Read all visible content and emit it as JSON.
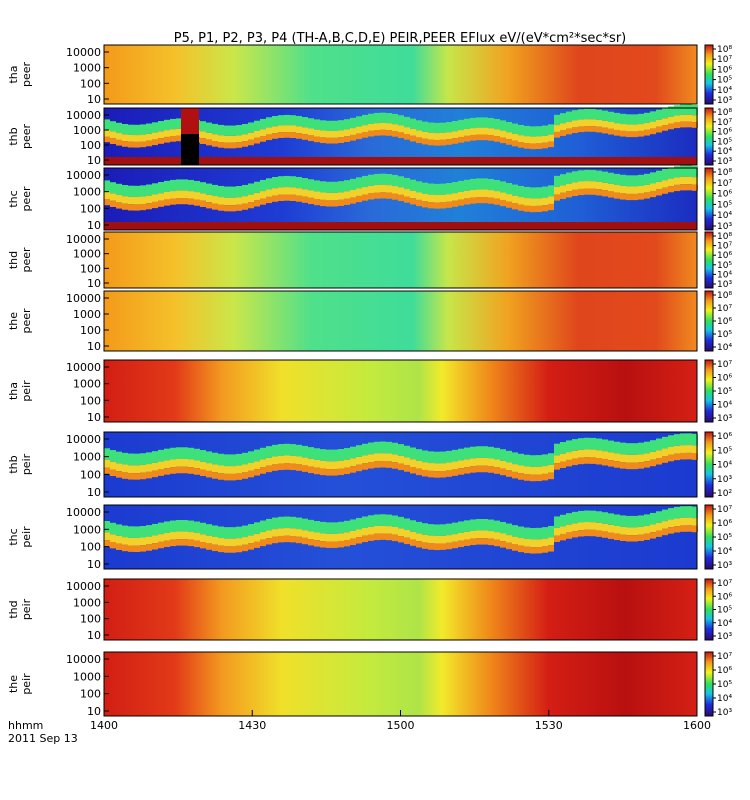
{
  "chart_data": {
    "type": "heatmap",
    "title": "P5, P1, P2, P3, P4 (TH-A,B,C,D,E) PEIR,PEER EFlux eV/(eV*cm²*sec*sr)",
    "time_axis": {
      "label_line1": "hhmm",
      "label_line2": "2011 Sep 13",
      "ticks": [
        "1400",
        "1430",
        "1500",
        "1530",
        "1600"
      ],
      "range_min": [
        0,
        120
      ]
    },
    "panels": [
      {
        "ylabel": [
          "tha",
          "peer"
        ],
        "yticks": [
          "10000",
          "1000",
          "100",
          "10"
        ],
        "colorbar_ticks": [
          "10⁸",
          "10⁷",
          "10⁶",
          "10⁵",
          "10⁴",
          "10³"
        ],
        "pattern": "smooth"
      },
      {
        "ylabel": [
          "thb",
          "peer"
        ],
        "yticks": [
          "10000",
          "1000",
          "100",
          "10"
        ],
        "colorbar_ticks": [
          "10⁸",
          "10⁷",
          "10⁶",
          "10⁵",
          "10⁴",
          "10³"
        ],
        "pattern": "noisy"
      },
      {
        "ylabel": [
          "thc",
          "peer"
        ],
        "yticks": [
          "10000",
          "1000",
          "100",
          "10"
        ],
        "colorbar_ticks": [
          "10⁸",
          "10⁷",
          "10⁶",
          "10⁵",
          "10⁴",
          "10³"
        ],
        "pattern": "noisy"
      },
      {
        "ylabel": [
          "thd",
          "peer"
        ],
        "yticks": [
          "10000",
          "1000",
          "100",
          "10"
        ],
        "colorbar_ticks": [
          "10⁸",
          "10⁷",
          "10⁶",
          "10⁵",
          "10⁴",
          "10³"
        ],
        "pattern": "smooth"
      },
      {
        "ylabel": [
          "the",
          "peer"
        ],
        "yticks": [
          "10000",
          "1000",
          "100",
          "10"
        ],
        "colorbar_ticks": [
          "10⁸",
          "10⁷",
          "10⁶",
          "10⁵",
          "10⁴"
        ],
        "pattern": "smooth"
      },
      {
        "ylabel": [
          "tha",
          "peir"
        ],
        "yticks": [
          "10000",
          "1000",
          "100",
          "10"
        ],
        "colorbar_ticks": [
          "10⁷",
          "10⁶",
          "10⁵",
          "10⁴",
          "10³"
        ],
        "pattern": "ion"
      },
      {
        "ylabel": [
          "thb",
          "peir"
        ],
        "yticks": [
          "10000",
          "1000",
          "100",
          "10"
        ],
        "colorbar_ticks": [
          "10⁶",
          "10⁵",
          "10⁴",
          "10³",
          "10²"
        ],
        "pattern": "noisy-ion"
      },
      {
        "ylabel": [
          "thc",
          "peir"
        ],
        "yticks": [
          "10000",
          "1000",
          "100",
          "10"
        ],
        "colorbar_ticks": [
          "10⁷",
          "10⁶",
          "10⁵",
          "10⁴",
          "10³"
        ],
        "pattern": "noisy-ion"
      },
      {
        "ylabel": [
          "thd",
          "peir"
        ],
        "yticks": [
          "10000",
          "1000",
          "100",
          "10"
        ],
        "colorbar_ticks": [
          "10⁷",
          "10⁶",
          "10⁵",
          "10⁴",
          "10³"
        ],
        "pattern": "ion"
      },
      {
        "ylabel": [
          "the",
          "peir"
        ],
        "yticks": [
          "10000",
          "1000",
          "100",
          "10"
        ],
        "colorbar_ticks": [
          "10⁷",
          "10⁶",
          "10⁵",
          "10⁴",
          "10³"
        ],
        "pattern": "ion"
      }
    ]
  }
}
